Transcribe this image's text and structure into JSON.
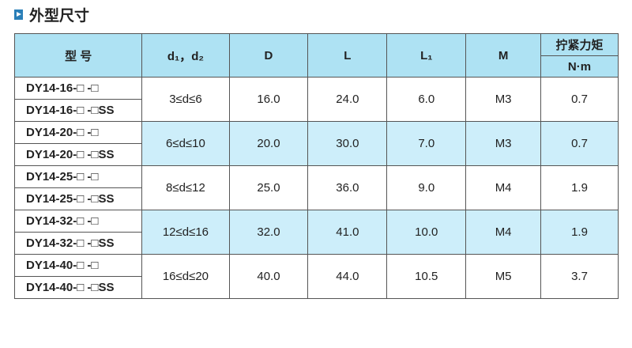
{
  "header": {
    "title": "外型尺寸"
  },
  "table": {
    "headers": [
      "型 号",
      "d₁，d₂",
      "D",
      "L",
      "L₁",
      "M",
      "拧紧力矩"
    ],
    "unit": "N·m",
    "rows": [
      {
        "models": [
          "DY14-16-□ -□",
          "DY14-16-□ -□SS"
        ],
        "cells": [
          "3≤d≤6",
          "16.0",
          "24.0",
          "6.0",
          "M3",
          "0.7"
        ]
      },
      {
        "models": [
          "DY14-20-□ -□",
          "DY14-20-□ -□SS"
        ],
        "cells": [
          "6≤d≤10",
          "20.0",
          "30.0",
          "7.0",
          "M3",
          "0.7"
        ]
      },
      {
        "models": [
          "DY14-25-□ -□",
          "DY14-25-□ -□SS"
        ],
        "cells": [
          "8≤d≤12",
          "25.0",
          "36.0",
          "9.0",
          "M4",
          "1.9"
        ]
      },
      {
        "models": [
          "DY14-32-□ -□",
          "DY14-32-□ -□SS"
        ],
        "cells": [
          "12≤d≤16",
          "32.0",
          "41.0",
          "10.0",
          "M4",
          "1.9"
        ]
      },
      {
        "models": [
          "DY14-40-□ -□",
          "DY14-40-□ -□SS"
        ],
        "cells": [
          "16≤d≤20",
          "40.0",
          "44.0",
          "10.5",
          "M5",
          "3.7"
        ]
      }
    ]
  }
}
